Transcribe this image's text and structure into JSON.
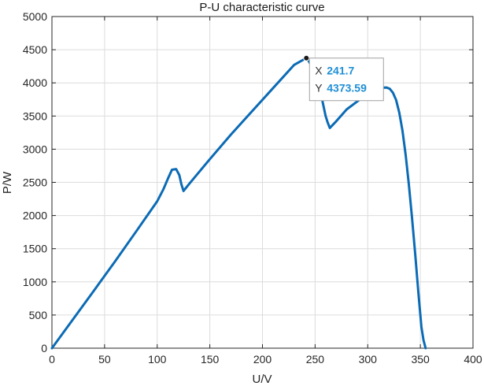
{
  "chart_data": {
    "type": "line",
    "title": "P-U characteristic curve",
    "xlabel": "U/V",
    "ylabel": "P/W",
    "xlim": [
      0,
      400
    ],
    "ylim": [
      0,
      5000
    ],
    "xticks": [
      0,
      50,
      100,
      150,
      200,
      250,
      300,
      350,
      400
    ],
    "yticks": [
      0,
      500,
      1000,
      1500,
      2000,
      2500,
      3000,
      3500,
      4000,
      4500,
      5000
    ],
    "grid": true,
    "series_color": "#0b6bb5",
    "x": [
      0,
      20,
      40,
      60,
      80,
      100,
      106,
      110,
      114,
      118,
      121,
      123,
      125,
      130,
      150,
      170,
      190,
      210,
      230,
      240,
      241.7,
      243,
      245,
      248,
      250,
      252,
      254,
      256,
      258,
      260,
      262,
      264,
      270,
      280,
      290,
      300,
      305,
      310,
      314,
      318,
      321,
      324,
      327,
      330,
      333,
      336,
      339,
      342,
      345,
      348,
      351,
      353,
      355
    ],
    "y": [
      0,
      435,
      870,
      1310,
      1760,
      2215,
      2400,
      2550,
      2690,
      2700,
      2610,
      2470,
      2370,
      2470,
      2850,
      3220,
      3570,
      3920,
      4270,
      4360,
      4373.59,
      4350,
      4300,
      4225,
      4150,
      4050,
      3920,
      3800,
      3650,
      3500,
      3400,
      3320,
      3420,
      3600,
      3720,
      3840,
      3880,
      3910,
      3928,
      3930,
      3910,
      3850,
      3740,
      3550,
      3280,
      2920,
      2480,
      1980,
      1440,
      860,
      320,
      120,
      0
    ],
    "datatip": {
      "x_label": "X",
      "x_value": "241.7",
      "y_label": "Y",
      "y_value": "4373.59",
      "point_x": 241.7,
      "point_y": 4373.59
    }
  }
}
